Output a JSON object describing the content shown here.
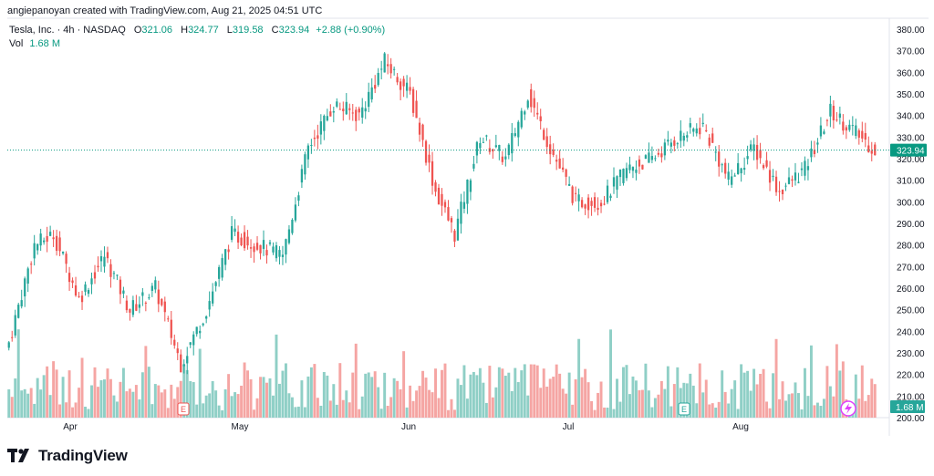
{
  "credit": "angiepanoyan created with TradingView.com, Aug 21, 2025 04:51 UTC",
  "legend": {
    "title": "Tesla, Inc. · 4h · NASDAQ",
    "open_label": "O",
    "open": "321.06",
    "high_label": "H",
    "high": "324.77",
    "low_label": "L",
    "low": "319.58",
    "close_label": "C",
    "close": "323.94",
    "change": "+2.88 (+0.90%)",
    "vol_label": "Vol",
    "vol": "1.68 M"
  },
  "brand": "TradingView",
  "colors": {
    "up": "#26a69a",
    "down": "#ef5350",
    "up_vol": "#8fcfc6",
    "down_vol": "#f5a5a3",
    "price_line": "#089981"
  },
  "chart_data": {
    "type": "candlestick",
    "price_axis": {
      "min": 200,
      "max": 380,
      "ticks": [
        "380.00",
        "370.00",
        "360.00",
        "350.00",
        "340.00",
        "330.00",
        "320.00",
        "310.00",
        "300.00",
        "290.00",
        "280.00",
        "270.00",
        "260.00",
        "250.00",
        "240.00",
        "230.00",
        "220.00",
        "210.00",
        "200.00"
      ]
    },
    "time_axis": [
      "Apr",
      "May",
      "Jun",
      "Jul",
      "Aug"
    ],
    "last_price_label": "323.94",
    "volume_label": "1.68 M",
    "earnings_marker": "E",
    "key_points": [
      {
        "t": 0,
        "close": 235
      },
      {
        "t": 8,
        "close": 280
      },
      {
        "t": 14,
        "close": 285
      },
      {
        "t": 22,
        "close": 255
      },
      {
        "t": 30,
        "close": 275
      },
      {
        "t": 38,
        "close": 250
      },
      {
        "t": 46,
        "close": 260
      },
      {
        "t": 54,
        "close": 225
      },
      {
        "t": 62,
        "close": 250
      },
      {
        "t": 70,
        "close": 285
      },
      {
        "t": 78,
        "close": 280
      },
      {
        "t": 86,
        "close": 275
      },
      {
        "t": 94,
        "close": 325
      },
      {
        "t": 102,
        "close": 345
      },
      {
        "t": 110,
        "close": 340
      },
      {
        "t": 118,
        "close": 365
      },
      {
        "t": 126,
        "close": 350
      },
      {
        "t": 134,
        "close": 305
      },
      {
        "t": 140,
        "close": 285
      },
      {
        "t": 148,
        "close": 330
      },
      {
        "t": 156,
        "close": 320
      },
      {
        "t": 163,
        "close": 350
      },
      {
        "t": 170,
        "close": 325
      },
      {
        "t": 178,
        "close": 300
      },
      {
        "t": 186,
        "close": 300
      },
      {
        "t": 194,
        "close": 315
      },
      {
        "t": 202,
        "close": 320
      },
      {
        "t": 210,
        "close": 330
      },
      {
        "t": 218,
        "close": 335
      },
      {
        "t": 226,
        "close": 310
      },
      {
        "t": 234,
        "close": 325
      },
      {
        "t": 242,
        "close": 305
      },
      {
        "t": 250,
        "close": 315
      },
      {
        "t": 258,
        "close": 342
      },
      {
        "t": 266,
        "close": 332
      },
      {
        "t": 272,
        "close": 323.94
      }
    ],
    "volume_range": [
      0.4,
      5.0
    ]
  }
}
